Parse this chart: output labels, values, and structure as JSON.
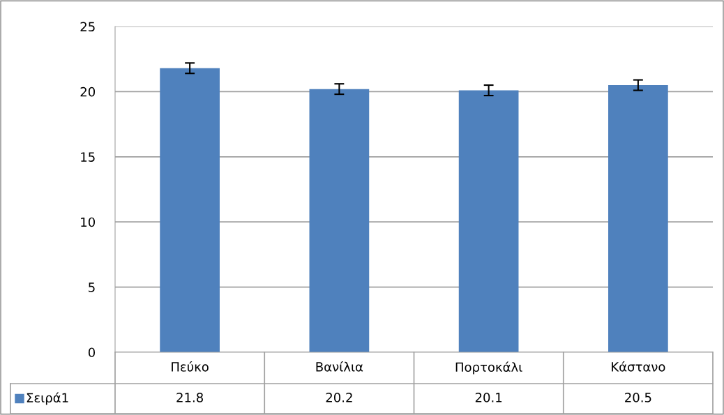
{
  "chart_data": {
    "type": "bar",
    "categories": [
      "Πεύκο",
      "Βανίλια",
      "Πορτοκάλι",
      "Κάστανο"
    ],
    "series": [
      {
        "name": "Σειρά1",
        "color": "#4f81bd",
        "values": [
          21.8,
          20.2,
          20.1,
          20.5
        ],
        "errors": [
          0.4,
          0.4,
          0.4,
          0.4
        ]
      }
    ],
    "ylim": [
      0,
      25
    ],
    "yticks": [
      0,
      5,
      10,
      15,
      20,
      25
    ],
    "grid": "y",
    "data_labels": true,
    "legend": "bottom"
  }
}
